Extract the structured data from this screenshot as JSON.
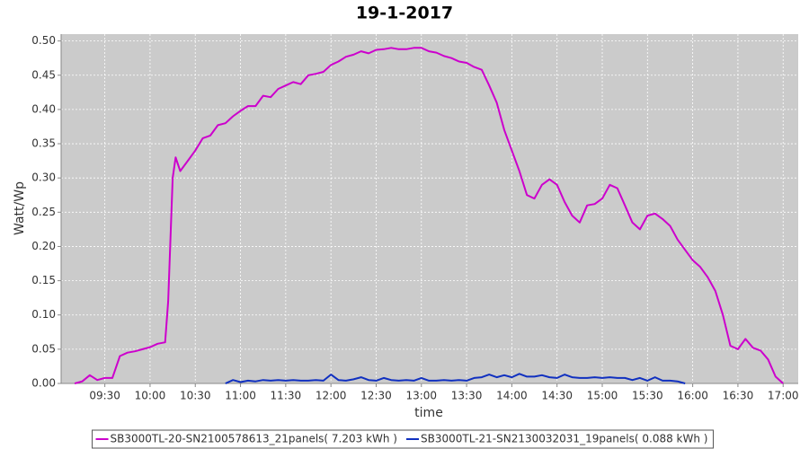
{
  "chart_data": {
    "type": "line",
    "title": "19-1-2017",
    "x_label": "time",
    "y_label": "Watt/Wp",
    "x": [
      "09:10",
      "09:15",
      "09:20",
      "09:25",
      "09:30",
      "09:35",
      "09:40",
      "09:45",
      "09:50",
      "09:55",
      "10:00",
      "10:05",
      "10:10",
      "10:12",
      "10:15",
      "10:17",
      "10:20",
      "10:25",
      "10:30",
      "10:35",
      "10:40",
      "10:45",
      "10:50",
      "10:55",
      "11:00",
      "11:05",
      "11:10",
      "11:15",
      "11:20",
      "11:25",
      "11:30",
      "11:35",
      "11:40",
      "11:45",
      "11:50",
      "11:55",
      "12:00",
      "12:05",
      "12:10",
      "12:15",
      "12:20",
      "12:25",
      "12:30",
      "12:35",
      "12:40",
      "12:45",
      "12:50",
      "12:55",
      "13:00",
      "13:05",
      "13:10",
      "13:15",
      "13:20",
      "13:25",
      "13:30",
      "13:35",
      "13:40",
      "13:45",
      "13:50",
      "13:55",
      "14:00",
      "14:05",
      "14:10",
      "14:15",
      "14:20",
      "14:25",
      "14:30",
      "14:35",
      "14:40",
      "14:45",
      "14:50",
      "14:55",
      "15:00",
      "15:05",
      "15:10",
      "15:15",
      "15:20",
      "15:25",
      "15:30",
      "15:35",
      "15:40",
      "15:45",
      "15:50",
      "15:55",
      "16:00",
      "16:05",
      "16:10",
      "16:15",
      "16:20",
      "16:25",
      "16:30",
      "16:35",
      "16:40",
      "16:45",
      "16:50",
      "16:55",
      "17:00"
    ],
    "series": [
      {
        "name": "SB3000TL-20-SN2100578613_21panels( 7.203 kWh )",
        "color": "#cc00cc",
        "values": [
          0,
          0.003,
          0.012,
          0.005,
          0.008,
          0.008,
          0.04,
          0.045,
          0.047,
          0.05,
          0.053,
          0.058,
          0.06,
          0.12,
          0.3,
          0.33,
          0.31,
          0.325,
          0.34,
          0.358,
          0.362,
          0.377,
          0.38,
          0.39,
          0.398,
          0.405,
          0.405,
          0.42,
          0.418,
          0.43,
          0.435,
          0.44,
          0.437,
          0.45,
          0.452,
          0.455,
          0.465,
          0.47,
          0.477,
          0.48,
          0.485,
          0.482,
          0.487,
          0.488,
          0.49,
          0.488,
          0.488,
          0.49,
          0.49,
          0.485,
          0.483,
          0.478,
          0.475,
          0.47,
          0.468,
          0.462,
          0.458,
          0.435,
          0.41,
          0.37,
          0.34,
          0.31,
          0.275,
          0.27,
          0.29,
          0.298,
          0.29,
          0.265,
          0.245,
          0.235,
          0.26,
          0.262,
          0.27,
          0.29,
          0.285,
          0.26,
          0.235,
          0.225,
          0.245,
          0.248,
          0.24,
          0.23,
          0.21,
          0.195,
          0.18,
          0.17,
          0.155,
          0.135,
          0.1,
          0.055,
          0.05,
          0.065,
          0.052,
          0.048,
          0.035,
          0.01,
          0
        ]
      },
      {
        "name": "SB3000TL-21-SN2130032031_19panels( 0.088 kWh )",
        "color": "#1030c0",
        "values": [
          null,
          null,
          null,
          null,
          null,
          null,
          null,
          null,
          null,
          null,
          null,
          null,
          null,
          null,
          null,
          null,
          null,
          null,
          null,
          null,
          null,
          null,
          0,
          0.005,
          0.002,
          0.004,
          0.003,
          0.005,
          0.004,
          0.005,
          0.004,
          0.005,
          0.004,
          0.004,
          0.005,
          0.004,
          0.013,
          0.005,
          0.004,
          0.006,
          0.009,
          0.005,
          0.004,
          0.008,
          0.005,
          0.004,
          0.005,
          0.004,
          0.008,
          0.004,
          0.004,
          0.005,
          0.004,
          0.005,
          0.004,
          0.008,
          0.009,
          0.013,
          0.009,
          0.012,
          0.009,
          0.014,
          0.01,
          0.01,
          0.012,
          0.009,
          0.008,
          0.013,
          0.009,
          0.008,
          0.008,
          0.009,
          0.008,
          0.009,
          0.008,
          0.008,
          0.005,
          0.008,
          0.004,
          0.009,
          0.004,
          0.004,
          0.003,
          0,
          null,
          null,
          null,
          null,
          null,
          null,
          null,
          null,
          null,
          null,
          null,
          null,
          null
        ]
      }
    ],
    "xlim": [
      "09:01",
      "17:10"
    ],
    "xticks": [
      "09:30",
      "10:00",
      "10:30",
      "11:00",
      "11:30",
      "12:00",
      "12:30",
      "13:00",
      "13:30",
      "14:00",
      "14:30",
      "15:00",
      "15:30",
      "16:00",
      "16:30",
      "17:00"
    ],
    "ylim": [
      0,
      0.51
    ],
    "yticks": [
      {
        "value": 0,
        "label": "0.00"
      },
      {
        "value": 0.05,
        "label": "0.05"
      },
      {
        "value": 0.1,
        "label": "0.10"
      },
      {
        "value": 0.15,
        "label": "0.15"
      },
      {
        "value": 0.2,
        "label": "0.20"
      },
      {
        "value": 0.25,
        "label": "0.25"
      },
      {
        "value": 0.3,
        "label": "0.30"
      },
      {
        "value": 0.35,
        "label": "0.35"
      },
      {
        "value": 0.4,
        "label": "0.40"
      },
      {
        "value": 0.45,
        "label": "0.45"
      },
      {
        "value": 0.5,
        "label": "0.50"
      }
    ],
    "grid": true,
    "legend": "bottom"
  }
}
